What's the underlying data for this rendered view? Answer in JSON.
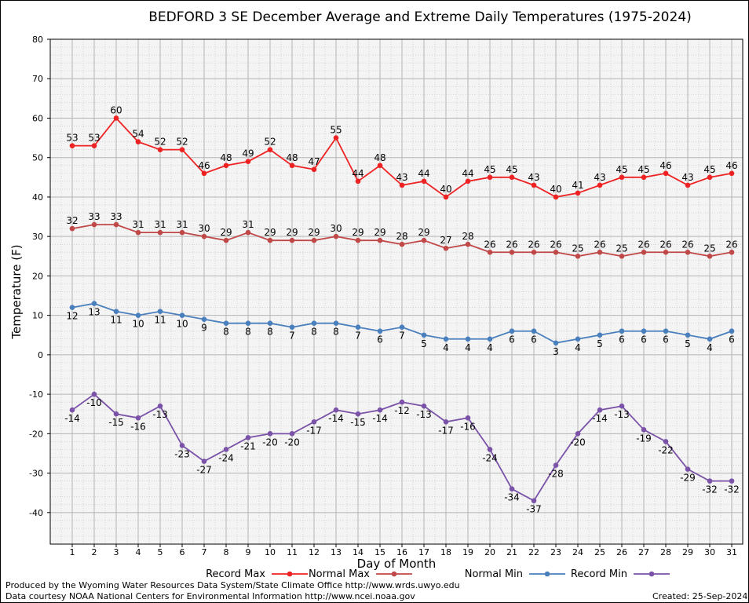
{
  "footer": {
    "producer": "Produced by the Wyoming Water Resources Data System/State Climate Office http://www.wrds.uwyo.edu",
    "courtesy": "Data courtesy NOAA National Centers for Environmental Information http://www.ncei.noaa.gov",
    "created": "Created: 25-Sep-2024"
  },
  "chart_data": {
    "type": "line",
    "title": "BEDFORD 3 SE December Average and Extreme Daily Temperatures (1975-2024)",
    "xlabel": "Day of Month",
    "ylabel": "Temperature (F)",
    "ylim": [
      -48,
      80
    ],
    "yticks": [
      -40,
      -30,
      -20,
      -10,
      0,
      10,
      20,
      30,
      40,
      50,
      60,
      70,
      80
    ],
    "grid": true,
    "legend_position": "bottom",
    "x": [
      1,
      2,
      3,
      4,
      5,
      6,
      7,
      8,
      9,
      10,
      11,
      12,
      13,
      14,
      15,
      16,
      17,
      18,
      19,
      20,
      21,
      22,
      23,
      24,
      25,
      26,
      27,
      28,
      29,
      30,
      31
    ],
    "series": [
      {
        "name": "Record Max",
        "color": "#ee2222",
        "label_pos": "above",
        "values": [
          53,
          53,
          60,
          54,
          52,
          52,
          46,
          48,
          49,
          52,
          48,
          47,
          55,
          44,
          48,
          43,
          44,
          40,
          44,
          45,
          45,
          43,
          40,
          41,
          43,
          45,
          45,
          46,
          43,
          45,
          46
        ]
      },
      {
        "name": "Normal Max",
        "color": "#c04848",
        "label_pos": "above",
        "values": [
          32,
          33,
          33,
          31,
          31,
          31,
          30,
          29,
          31,
          29,
          29,
          29,
          30,
          29,
          29,
          28,
          29,
          27,
          28,
          26,
          26,
          26,
          26,
          25,
          26,
          25,
          26,
          26,
          26,
          25,
          26
        ]
      },
      {
        "name": "Normal Min",
        "color": "#4a7fbd",
        "label_pos": "below",
        "values": [
          12,
          13,
          11,
          10,
          11,
          10,
          9,
          8,
          8,
          8,
          7,
          8,
          8,
          7,
          6,
          7,
          5,
          4,
          4,
          4,
          6,
          6,
          3,
          4,
          5,
          6,
          6,
          6,
          5,
          4,
          6
        ]
      },
      {
        "name": "Record Min",
        "color": "#7a52a8",
        "label_pos": "below",
        "values": [
          -14,
          -10,
          -15,
          -16,
          -13,
          -23,
          -27,
          -24,
          -21,
          -20,
          -20,
          -17,
          -14,
          -15,
          -14,
          -12,
          -13,
          -17,
          -16,
          -24,
          -34,
          -37,
          -28,
          -20,
          -14,
          -13,
          -19,
          -22,
          -29,
          -32,
          -32
        ]
      }
    ]
  }
}
